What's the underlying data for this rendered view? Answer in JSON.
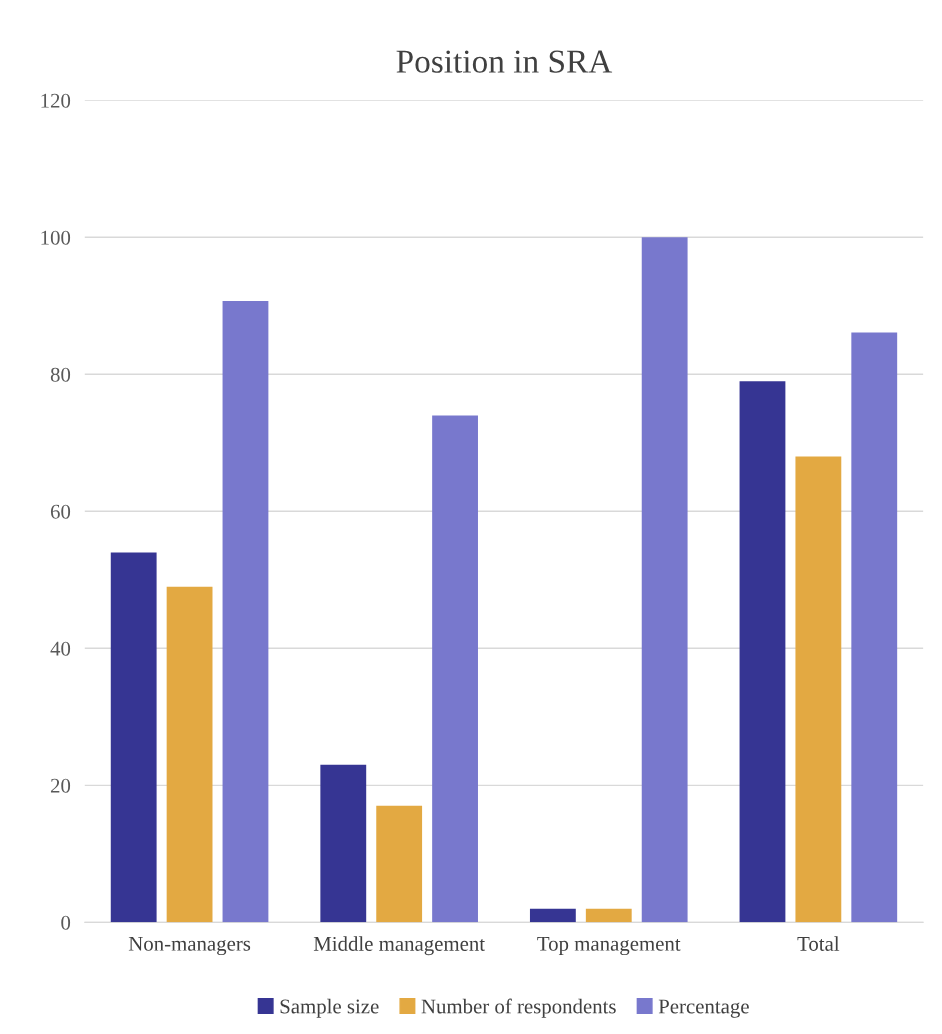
{
  "chart_data": {
    "type": "bar",
    "title": "Position in SRA",
    "categories": [
      "Non-managers",
      "Middle management",
      "Top management",
      "Total"
    ],
    "series": [
      {
        "name": "Sample size",
        "color": "#363593",
        "values": [
          54,
          23,
          2,
          79
        ]
      },
      {
        "name": "Number of respondents",
        "color": "#e3a942",
        "values": [
          49,
          17,
          2,
          68
        ]
      },
      {
        "name": "Percentage",
        "color": "#7878cd",
        "values": [
          90.7,
          74.0,
          100,
          86.1
        ]
      }
    ],
    "ylim": [
      0,
      120
    ],
    "yticks": [
      0,
      20,
      40,
      60,
      80,
      100,
      120
    ],
    "grid": "y",
    "legend": "bottom"
  }
}
